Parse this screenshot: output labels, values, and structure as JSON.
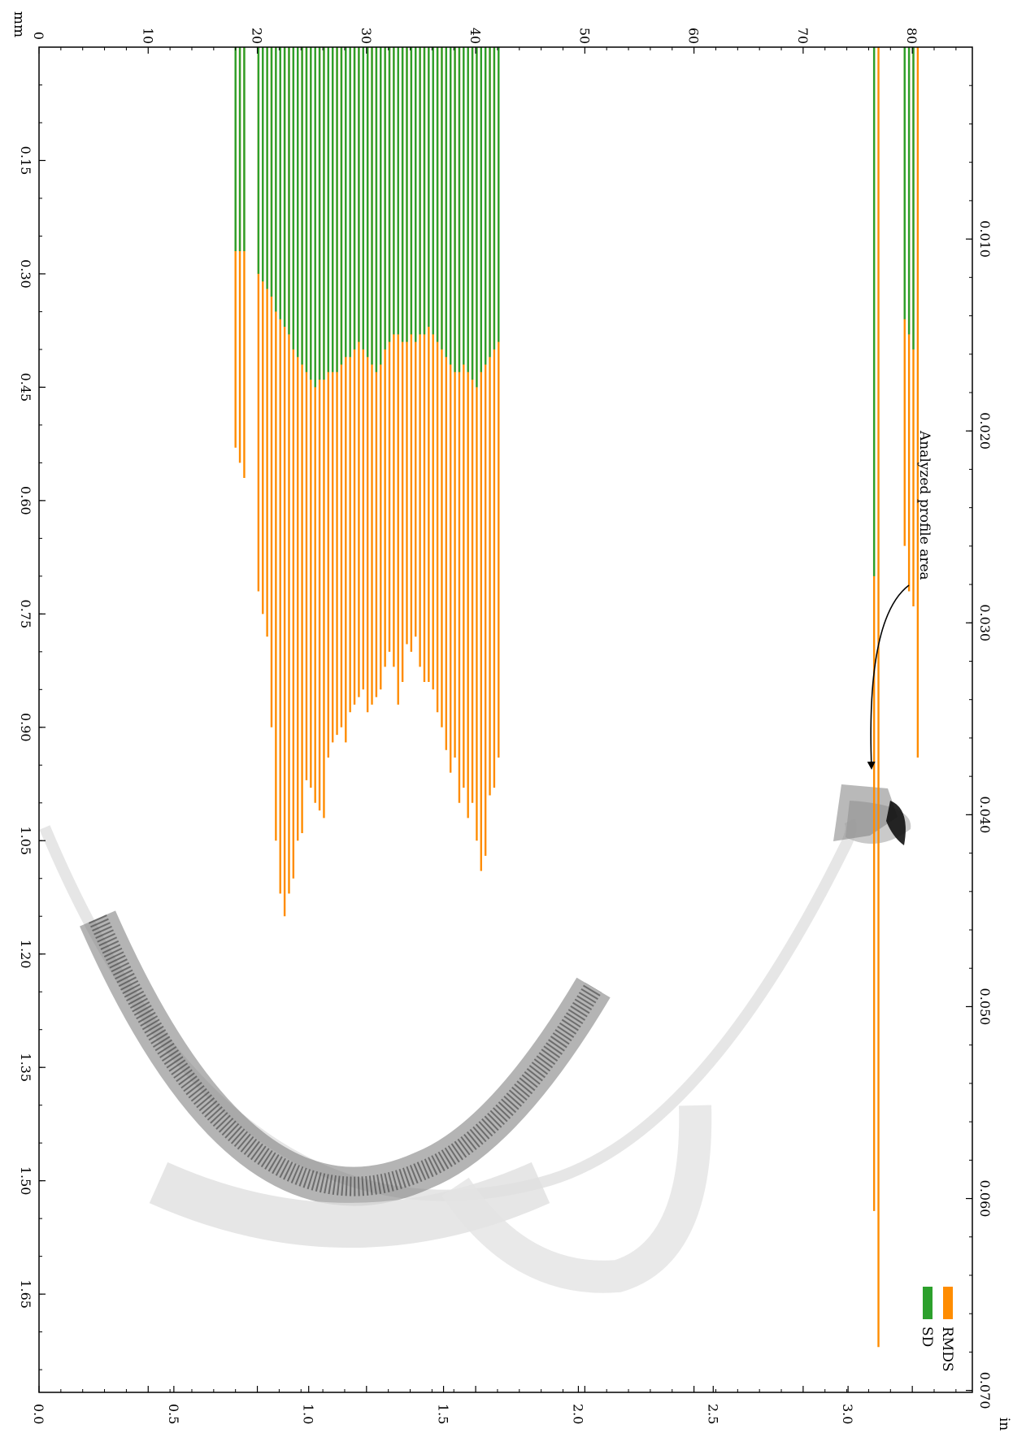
{
  "chart_data": {
    "type": "bar",
    "orientation": "rotated-90-clockwise",
    "stacked": true,
    "axes": {
      "left_mm": {
        "unit_label": "mm",
        "ticks": [
          0,
          10,
          20,
          30,
          40,
          50,
          60,
          70,
          80
        ],
        "lim": [
          0,
          85.5
        ]
      },
      "bottom_in": {
        "unit_label": "in",
        "ticks": [
          "0.0",
          "0.5",
          "1.0",
          "1.5",
          "2.0",
          "2.5",
          "3.0"
        ],
        "lim": [
          0.0,
          3.4
        ]
      },
      "top_mm": {
        "ticks": [
          "0.15",
          "0.30",
          "0.45",
          "0.60",
          "0.75",
          "0.90",
          "1.05",
          "1.20",
          "1.35",
          "1.50",
          "1.65"
        ],
        "lim": [
          0.0,
          1.78
        ]
      },
      "right_in": {
        "ticks": [
          "0.010",
          "0.020",
          "0.030",
          "0.040",
          "0.050",
          "0.060",
          "0.070"
        ],
        "lim": [
          0.0,
          0.0701
        ]
      }
    },
    "legend": {
      "position": "top-right",
      "items": [
        {
          "label": "RMDS",
          "color": "#ff8c00"
        },
        {
          "label": "SD",
          "color": "#2ca02c"
        }
      ]
    },
    "annotation": {
      "text": "Analyzed profile area"
    },
    "series": [
      {
        "name": "SD",
        "color": "#2ca02c",
        "points": [
          [
            18.0,
            0.27
          ],
          [
            18.4,
            0.27
          ],
          [
            18.8,
            0.27
          ],
          [
            20.1,
            0.3
          ],
          [
            20.5,
            0.31
          ],
          [
            20.9,
            0.32
          ],
          [
            21.3,
            0.33
          ],
          [
            21.7,
            0.35
          ],
          [
            22.1,
            0.36
          ],
          [
            22.5,
            0.37
          ],
          [
            22.9,
            0.38
          ],
          [
            23.3,
            0.4
          ],
          [
            23.7,
            0.41
          ],
          [
            24.1,
            0.42
          ],
          [
            24.5,
            0.43
          ],
          [
            24.9,
            0.44
          ],
          [
            25.3,
            0.45
          ],
          [
            25.7,
            0.44
          ],
          [
            26.1,
            0.44
          ],
          [
            26.5,
            0.43
          ],
          [
            26.9,
            0.43
          ],
          [
            27.3,
            0.43
          ],
          [
            27.7,
            0.42
          ],
          [
            28.1,
            0.41
          ],
          [
            28.5,
            0.41
          ],
          [
            28.9,
            0.4
          ],
          [
            29.3,
            0.39
          ],
          [
            29.7,
            0.4
          ],
          [
            30.1,
            0.41
          ],
          [
            30.5,
            0.42
          ],
          [
            30.9,
            0.43
          ],
          [
            31.3,
            0.42
          ],
          [
            31.7,
            0.4
          ],
          [
            32.1,
            0.39
          ],
          [
            32.5,
            0.38
          ],
          [
            32.9,
            0.38
          ],
          [
            33.3,
            0.39
          ],
          [
            33.7,
            0.39
          ],
          [
            34.1,
            0.38
          ],
          [
            34.5,
            0.39
          ],
          [
            34.9,
            0.38
          ],
          [
            35.3,
            0.38
          ],
          [
            35.7,
            0.37
          ],
          [
            36.1,
            0.38
          ],
          [
            36.5,
            0.39
          ],
          [
            36.9,
            0.4
          ],
          [
            37.3,
            0.41
          ],
          [
            37.7,
            0.42
          ],
          [
            38.1,
            0.43
          ],
          [
            38.5,
            0.43
          ],
          [
            38.9,
            0.42
          ],
          [
            39.3,
            0.43
          ],
          [
            39.7,
            0.44
          ],
          [
            40.1,
            0.45
          ],
          [
            40.5,
            0.43
          ],
          [
            40.9,
            0.42
          ],
          [
            41.3,
            0.41
          ],
          [
            41.7,
            0.4
          ],
          [
            42.1,
            0.39
          ],
          [
            76.5,
            0.7
          ],
          [
            79.3,
            0.36
          ],
          [
            79.7,
            0.38
          ],
          [
            80.1,
            0.4
          ]
        ]
      },
      {
        "name": "RMDS",
        "color": "#ff8c00",
        "points": [
          [
            18.0,
            0.53
          ],
          [
            18.4,
            0.55
          ],
          [
            18.8,
            0.57
          ],
          [
            20.1,
            0.72
          ],
          [
            20.5,
            0.75
          ],
          [
            20.9,
            0.78
          ],
          [
            21.3,
            0.9
          ],
          [
            21.7,
            1.05
          ],
          [
            22.1,
            1.12
          ],
          [
            22.5,
            1.15
          ],
          [
            22.9,
            1.12
          ],
          [
            23.3,
            1.1
          ],
          [
            23.7,
            1.05
          ],
          [
            24.1,
            1.04
          ],
          [
            24.5,
            0.97
          ],
          [
            24.9,
            0.98
          ],
          [
            25.3,
            1.0
          ],
          [
            25.7,
            1.01
          ],
          [
            26.1,
            1.02
          ],
          [
            26.5,
            0.94
          ],
          [
            26.9,
            0.92
          ],
          [
            27.3,
            0.91
          ],
          [
            27.7,
            0.9
          ],
          [
            28.1,
            0.92
          ],
          [
            28.5,
            0.88
          ],
          [
            28.9,
            0.87
          ],
          [
            29.3,
            0.86
          ],
          [
            29.7,
            0.85
          ],
          [
            30.1,
            0.88
          ],
          [
            30.5,
            0.87
          ],
          [
            30.9,
            0.86
          ],
          [
            31.3,
            0.85
          ],
          [
            31.7,
            0.82
          ],
          [
            32.1,
            0.8
          ],
          [
            32.5,
            0.82
          ],
          [
            32.9,
            0.87
          ],
          [
            33.3,
            0.84
          ],
          [
            33.7,
            0.79
          ],
          [
            34.1,
            0.8
          ],
          [
            34.5,
            0.78
          ],
          [
            34.9,
            0.82
          ],
          [
            35.3,
            0.84
          ],
          [
            35.7,
            0.84
          ],
          [
            36.1,
            0.85
          ],
          [
            36.5,
            0.88
          ],
          [
            36.9,
            0.9
          ],
          [
            37.3,
            0.93
          ],
          [
            37.7,
            0.96
          ],
          [
            38.1,
            0.94
          ],
          [
            38.5,
            1.0
          ],
          [
            38.9,
            0.98
          ],
          [
            39.3,
            1.02
          ],
          [
            39.7,
            1.0
          ],
          [
            40.1,
            1.05
          ],
          [
            40.5,
            1.09
          ],
          [
            40.9,
            1.07
          ],
          [
            41.3,
            0.99
          ],
          [
            41.7,
            0.98
          ],
          [
            42.1,
            0.94
          ],
          [
            76.5,
            1.54
          ],
          [
            76.9,
            1.72
          ],
          [
            79.3,
            0.66
          ],
          [
            79.7,
            0.72
          ],
          [
            80.1,
            0.74
          ],
          [
            80.5,
            0.94
          ]
        ]
      }
    ]
  }
}
